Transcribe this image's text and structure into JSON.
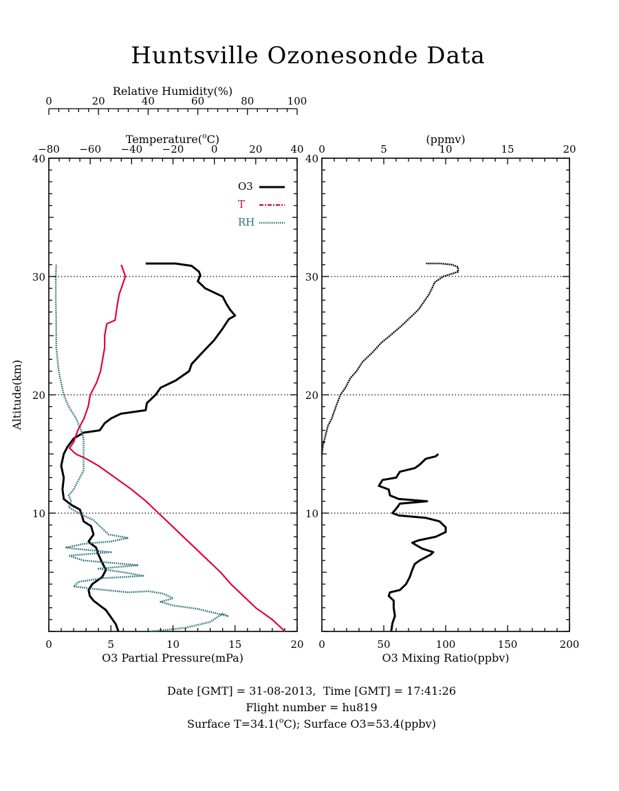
{
  "title": "Huntsville Ozonesonde Data",
  "left_panel": {
    "top_axis_rh": {
      "label": "Relative Humidity(%)",
      "range": [
        0,
        100
      ],
      "ticks": [
        "0",
        "20",
        "40",
        "60",
        "80",
        "100"
      ]
    },
    "top_axis_temp": {
      "label_pre": "Temperature(",
      "label_sup": "o",
      "label_post": "C)",
      "range": [
        -80,
        40
      ],
      "ticks": [
        "−80",
        "−60",
        "−40",
        "−20",
        "0",
        "20",
        "40"
      ]
    },
    "bottom_axis": {
      "label": "O3 Partial Pressure(mPa)",
      "range": [
        0,
        20
      ],
      "ticks": [
        "0",
        "5",
        "10",
        "15",
        "20"
      ]
    },
    "y_axis": {
      "label": "Altitude(km)",
      "range": [
        0,
        40
      ],
      "ticks": [
        "10",
        "20",
        "30",
        "40"
      ]
    },
    "legend": [
      {
        "name": "O3",
        "color": "#000000"
      },
      {
        "name": "T",
        "color": "#e0003c"
      },
      {
        "name": "RH",
        "color": "#2a6e78"
      }
    ]
  },
  "right_panel": {
    "top_axis": {
      "label": "(ppmv)",
      "range": [
        0,
        20
      ],
      "ticks": [
        "0",
        "5",
        "10",
        "15",
        "20"
      ]
    },
    "bottom_axis": {
      "label": "O3 Mixing Ratio(ppbv)",
      "range": [
        0,
        200
      ],
      "ticks": [
        "0",
        "50",
        "100",
        "150",
        "200"
      ]
    },
    "y_axis": {
      "range": [
        0,
        40
      ],
      "ticks": [
        "10",
        "20",
        "30",
        "40"
      ]
    }
  },
  "footer": {
    "line1": "Date [GMT] = 31-08-2013,  Time [GMT] = 17:41:26",
    "line2": "Flight number = hu819",
    "line3_pre": "Surface T=34.1(",
    "line3_sup": "o",
    "line3_post": "C); Surface O3=53.4(ppbv)"
  },
  "chart_data": [
    {
      "type": "line",
      "panel": "left",
      "series": [
        {
          "name": "O3",
          "axis": "O3 Partial Pressure(mPa)",
          "color": "#000000",
          "points": [
            [
              5.6,
              0.0
            ],
            [
              5.4,
              0.6
            ],
            [
              5.0,
              1.2
            ],
            [
              4.6,
              1.8
            ],
            [
              4.1,
              2.2
            ],
            [
              3.6,
              2.6
            ],
            [
              3.3,
              3.0
            ],
            [
              3.2,
              3.5
            ],
            [
              3.5,
              4.0
            ],
            [
              4.3,
              4.6
            ],
            [
              4.6,
              5.2
            ],
            [
              4.3,
              5.8
            ],
            [
              4.0,
              6.5
            ],
            [
              3.8,
              7.1
            ],
            [
              3.4,
              7.4
            ],
            [
              3.2,
              7.6
            ],
            [
              3.6,
              8.2
            ],
            [
              3.4,
              8.9
            ],
            [
              2.8,
              9.3
            ],
            [
              2.7,
              9.7
            ],
            [
              2.5,
              10.3
            ],
            [
              1.8,
              10.7
            ],
            [
              1.2,
              11.2
            ],
            [
              1.1,
              12.0
            ],
            [
              1.2,
              13.0
            ],
            [
              1.0,
              14.0
            ],
            [
              1.2,
              15.0
            ],
            [
              1.5,
              15.6
            ],
            [
              2.0,
              16.3
            ],
            [
              2.8,
              16.8
            ],
            [
              4.1,
              17.0
            ],
            [
              4.5,
              17.6
            ],
            [
              5.0,
              18.0
            ],
            [
              5.8,
              18.4
            ],
            [
              7.8,
              18.7
            ],
            [
              7.9,
              19.3
            ],
            [
              8.6,
              20.0
            ],
            [
              9.0,
              20.6
            ],
            [
              10.2,
              21.2
            ],
            [
              11.3,
              22.0
            ],
            [
              11.5,
              22.6
            ],
            [
              12.3,
              23.5
            ],
            [
              13.3,
              24.6
            ],
            [
              14.0,
              25.6
            ],
            [
              14.5,
              26.4
            ],
            [
              15.0,
              26.7
            ],
            [
              14.6,
              27.2
            ],
            [
              14.3,
              27.7
            ],
            [
              14.0,
              28.3
            ],
            [
              12.6,
              29.0
            ],
            [
              12.0,
              29.6
            ],
            [
              12.2,
              30.1
            ],
            [
              12.1,
              30.4
            ],
            [
              11.5,
              30.9
            ],
            [
              10.2,
              31.1
            ],
            [
              7.8,
              31.1
            ]
          ]
        },
        {
          "name": "T",
          "axis": "Temperature(oC)",
          "color": "#e0003c",
          "points": [
            [
              34.1,
              0.0
            ],
            [
              28.0,
              1.0
            ],
            [
              20.0,
              2.0
            ],
            [
              14.0,
              3.0
            ],
            [
              8.0,
              4.0
            ],
            [
              3.0,
              5.0
            ],
            [
              -3.0,
              6.0
            ],
            [
              -9.0,
              7.0
            ],
            [
              -15.0,
              8.0
            ],
            [
              -21.0,
              9.0
            ],
            [
              -27.0,
              10.0
            ],
            [
              -33.0,
              11.0
            ],
            [
              -40.0,
              12.0
            ],
            [
              -48.0,
              13.0
            ],
            [
              -56.0,
              14.0
            ],
            [
              -62.0,
              14.6
            ],
            [
              -67.0,
              15.0
            ],
            [
              -70.0,
              15.5
            ],
            [
              -68.0,
              16.0
            ],
            [
              -66.0,
              17.0
            ],
            [
              -63.0,
              18.0
            ],
            [
              -61.0,
              19.0
            ],
            [
              -60.0,
              20.0
            ],
            [
              -57.0,
              21.0
            ],
            [
              -55.0,
              22.0
            ],
            [
              -54.0,
              23.0
            ],
            [
              -53.0,
              24.0
            ],
            [
              -53.0,
              25.0
            ],
            [
              -52.0,
              26.0
            ],
            [
              -48.0,
              26.3
            ],
            [
              -47.0,
              27.5
            ],
            [
              -46.0,
              28.5
            ],
            [
              -44.0,
              29.5
            ],
            [
              -43.0,
              30.0
            ],
            [
              -44.0,
              30.5
            ],
            [
              -45.0,
              31.0
            ]
          ]
        },
        {
          "name": "RH",
          "axis": "Relative Humidity(%)",
          "color": "#2a6e78",
          "points": [
            [
              41,
              0.0
            ],
            [
              55,
              0.3
            ],
            [
              65,
              0.8
            ],
            [
              70,
              1.5
            ],
            [
              72,
              1.3
            ],
            [
              60,
              1.9
            ],
            [
              50,
              2.2
            ],
            [
              45,
              2.5
            ],
            [
              50,
              2.8
            ],
            [
              46,
              3.2
            ],
            [
              40,
              3.4
            ],
            [
              32,
              3.3
            ],
            [
              18,
              3.6
            ],
            [
              10,
              3.8
            ],
            [
              12,
              4.2
            ],
            [
              22,
              4.5
            ],
            [
              38,
              4.7
            ],
            [
              30,
              5.0
            ],
            [
              20,
              5.3
            ],
            [
              36,
              5.6
            ],
            [
              14,
              6.0
            ],
            [
              8,
              6.4
            ],
            [
              25,
              6.7
            ],
            [
              10,
              7.0
            ],
            [
              7,
              7.1
            ],
            [
              14,
              7.4
            ],
            [
              25,
              7.6
            ],
            [
              32,
              7.9
            ],
            [
              24,
              8.2
            ],
            [
              22,
              8.6
            ],
            [
              20,
              9.0
            ],
            [
              18,
              9.4
            ],
            [
              12,
              10.0
            ],
            [
              8,
              10.5
            ],
            [
              9,
              11.0
            ],
            [
              8,
              11.5
            ],
            [
              10,
              12.0
            ],
            [
              12,
              12.8
            ],
            [
              14,
              13.6
            ],
            [
              14,
              14.5
            ],
            [
              14,
              15.5
            ],
            [
              14,
              16.3
            ],
            [
              13,
              17.0
            ],
            [
              11,
              18.0
            ],
            [
              8,
              19.0
            ],
            [
              6,
              20.0
            ],
            [
              5,
              21.0
            ],
            [
              4,
              22.0
            ],
            [
              3.5,
              23.0
            ],
            [
              3,
              24.0
            ],
            [
              3,
              26.0
            ],
            [
              2.8,
              28.0
            ],
            [
              2.8,
              30.0
            ],
            [
              3,
              31.0
            ]
          ]
        }
      ]
    },
    {
      "type": "line",
      "panel": "right",
      "series": [
        {
          "name": "O3 mixing ratio",
          "axis": "O3 Mixing Ratio(ppbv)",
          "color": "#000000",
          "points": [
            [
              56,
              0.0
            ],
            [
              57,
              0.7
            ],
            [
              59,
              1.3
            ],
            [
              58,
              2.0
            ],
            [
              58,
              2.6
            ],
            [
              54,
              3.0
            ],
            [
              55,
              3.3
            ],
            [
              63,
              3.5
            ],
            [
              68,
              4.0
            ],
            [
              71,
              4.6
            ],
            [
              73,
              5.2
            ],
            [
              75,
              5.7
            ],
            [
              79,
              6.0
            ],
            [
              88,
              6.5
            ],
            [
              90,
              6.7
            ],
            [
              81,
              7.0
            ],
            [
              76,
              7.3
            ],
            [
              73,
              7.5
            ],
            [
              78,
              7.7
            ],
            [
              92,
              8.0
            ],
            [
              100,
              8.4
            ],
            [
              100,
              8.8
            ],
            [
              95,
              9.3
            ],
            [
              84,
              9.6
            ],
            [
              62,
              9.8
            ],
            [
              57,
              10.0
            ],
            [
              61,
              10.5
            ],
            [
              63,
              10.8
            ],
            [
              85,
              11.0
            ],
            [
              62,
              11.2
            ],
            [
              55,
              11.5
            ],
            [
              54,
              12.0
            ],
            [
              46,
              12.3
            ],
            [
              49,
              12.8
            ],
            [
              60,
              13.0
            ],
            [
              63,
              13.5
            ],
            [
              75,
              13.8
            ],
            [
              79,
              14.1
            ],
            [
              84,
              14.6
            ],
            [
              92,
              14.8
            ],
            [
              94,
              15.0
            ],
            [
              0,
              15.0
            ],
            [
              1,
              15.8
            ],
            [
              3,
              16.6
            ],
            [
              5,
              17.4
            ],
            [
              8,
              18.0
            ],
            [
              10,
              18.6
            ],
            [
              12,
              19.2
            ],
            [
              15,
              20.0
            ],
            [
              19,
              20.6
            ],
            [
              23,
              21.4
            ],
            [
              28,
              22.0
            ],
            [
              33,
              22.8
            ],
            [
              41,
              23.6
            ],
            [
              48,
              24.4
            ],
            [
              55,
              25.0
            ],
            [
              64,
              25.8
            ],
            [
              72,
              26.6
            ],
            [
              78,
              27.2
            ],
            [
              82,
              27.8
            ],
            [
              86,
              28.4
            ],
            [
              89,
              29.0
            ],
            [
              91,
              29.5
            ],
            [
              98,
              30.0
            ],
            [
              104,
              30.2
            ],
            [
              110,
              30.4
            ],
            [
              110,
              30.8
            ],
            [
              105,
              31.0
            ],
            [
              96,
              31.1
            ],
            [
              84,
              31.1
            ]
          ]
        }
      ]
    }
  ]
}
